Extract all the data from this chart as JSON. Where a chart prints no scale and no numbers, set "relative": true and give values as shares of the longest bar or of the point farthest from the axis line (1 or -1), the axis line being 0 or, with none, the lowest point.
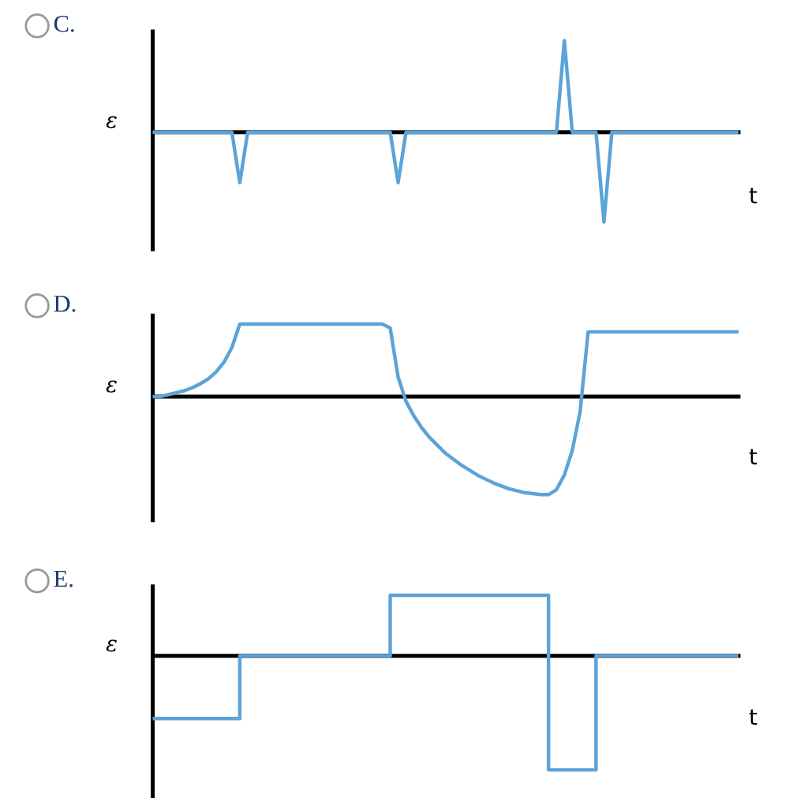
{
  "chart_data": [
    {
      "type": "line",
      "title": "C.",
      "xlabel": "t",
      "ylabel": "ε",
      "relative": true,
      "categories": [
        null,
        null,
        null,
        null,
        null,
        null,
        null,
        null,
        null,
        null,
        null,
        null,
        null,
        null,
        null,
        null,
        null,
        null,
        null,
        null,
        null,
        null,
        null,
        null,
        null,
        null,
        null,
        null,
        null,
        null,
        null,
        null,
        null,
        null,
        null,
        null,
        null,
        null,
        null,
        null,
        null,
        null,
        null,
        null,
        null,
        null,
        null,
        null,
        null,
        null,
        null,
        null,
        null,
        null,
        null,
        null,
        null,
        null,
        null,
        null,
        null,
        null,
        null,
        null,
        null,
        null,
        null,
        null,
        null,
        null,
        null,
        null,
        null,
        null,
        null
      ],
      "series": [
        {
          "color": "#5ba3d9",
          "values": [
            0,
            0,
            0,
            0,
            0,
            0,
            0,
            0,
            0,
            0,
            0,
            -0.55,
            0,
            0,
            0,
            0,
            0,
            0,
            0,
            0,
            0,
            0,
            0,
            0,
            0,
            0,
            0,
            0,
            0,
            0,
            0,
            -0.55,
            0,
            0,
            0,
            0,
            0,
            0,
            0,
            0,
            0,
            0,
            0,
            0,
            0,
            0,
            0,
            0,
            0,
            0,
            0,
            0,
            1,
            0,
            0,
            0,
            0,
            -0.98,
            0,
            0,
            0,
            0,
            0,
            0,
            0,
            0,
            0,
            0,
            0,
            0,
            0,
            0,
            0,
            0,
            0
          ]
        }
      ]
    },
    {
      "type": "line",
      "title": "D.",
      "xlabel": "t",
      "ylabel": "ε",
      "relative": true,
      "categories": [
        null,
        null,
        null,
        null,
        null,
        null,
        null,
        null,
        null,
        null,
        null,
        null,
        null,
        null,
        null,
        null,
        null,
        null,
        null,
        null,
        null,
        null,
        null,
        null,
        null,
        null,
        null,
        null,
        null,
        null,
        null,
        null,
        null,
        null,
        null,
        null,
        null,
        null,
        null,
        null,
        null,
        null,
        null,
        null,
        null,
        null,
        null,
        null,
        null,
        null,
        null,
        null,
        null,
        null,
        null,
        null,
        null,
        null,
        null,
        null,
        null,
        null,
        null,
        null,
        null,
        null,
        null,
        null,
        null,
        null,
        null,
        null,
        null,
        null,
        null
      ],
      "series": [
        {
          "color": "#5ba3d9",
          "values": [
            0,
            0,
            0.02,
            0.04,
            0.06,
            0.09,
            0.13,
            0.18,
            0.25,
            0.35,
            0.5,
            0.74,
            0.74,
            0.74,
            0.74,
            0.74,
            0.74,
            0.74,
            0.74,
            0.74,
            0.74,
            0.74,
            0.74,
            0.74,
            0.74,
            0.74,
            0.74,
            0.74,
            0.74,
            0.74,
            0.7,
            0.2,
            -0.05,
            -0.2,
            -0.32,
            -0.42,
            -0.5,
            -0.58,
            -0.64,
            -0.7,
            -0.75,
            -0.8,
            -0.84,
            -0.88,
            -0.91,
            -0.94,
            -0.96,
            -0.98,
            -0.99,
            -1,
            -1,
            -0.95,
            -0.8,
            -0.55,
            -0.15,
            0.66,
            0.66,
            0.66,
            0.66,
            0.66,
            0.66,
            0.66,
            0.66,
            0.66,
            0.66,
            0.66,
            0.66,
            0.66,
            0.66,
            0.66,
            0.66,
            0.66,
            0.66,
            0.66,
            0.66
          ]
        }
      ]
    },
    {
      "type": "step",
      "title": "E.",
      "xlabel": "t",
      "ylabel": "ε",
      "relative": true,
      "categories": [
        null,
        null,
        null,
        null,
        null,
        null,
        null,
        null,
        null,
        null,
        null,
        null,
        null,
        null,
        null,
        null,
        null,
        null,
        null,
        null,
        null,
        null,
        null,
        null,
        null,
        null,
        null,
        null,
        null,
        null,
        null,
        null,
        null,
        null,
        null,
        null,
        null,
        null,
        null,
        null,
        null,
        null,
        null,
        null,
        null,
        null,
        null,
        null,
        null,
        null,
        null,
        null,
        null,
        null,
        null,
        null,
        null,
        null,
        null,
        null,
        null,
        null,
        null,
        null,
        null,
        null,
        null,
        null,
        null,
        null,
        null,
        null,
        null,
        null,
        null
      ],
      "series": [
        {
          "color": "#5ba3d9",
          "values": [
            -0.55,
            -0.55,
            -0.55,
            -0.55,
            -0.55,
            -0.55,
            -0.55,
            -0.55,
            -0.55,
            -0.55,
            -0.55,
            0,
            0,
            0,
            0,
            0,
            0,
            0,
            0,
            0,
            0,
            0,
            0,
            0,
            0,
            0,
            0,
            0,
            0,
            0,
            0.53,
            0.53,
            0.53,
            0.53,
            0.53,
            0.53,
            0.53,
            0.53,
            0.53,
            0.53,
            0.53,
            0.53,
            0.53,
            0.53,
            0.53,
            0.53,
            0.53,
            0.53,
            0.53,
            0.53,
            -1,
            -1,
            -1,
            -1,
            -1,
            -1,
            0,
            0,
            0,
            0,
            0,
            0,
            0,
            0,
            0,
            0,
            0,
            0,
            0,
            0,
            0,
            0,
            0,
            0,
            0
          ]
        }
      ]
    }
  ]
}
